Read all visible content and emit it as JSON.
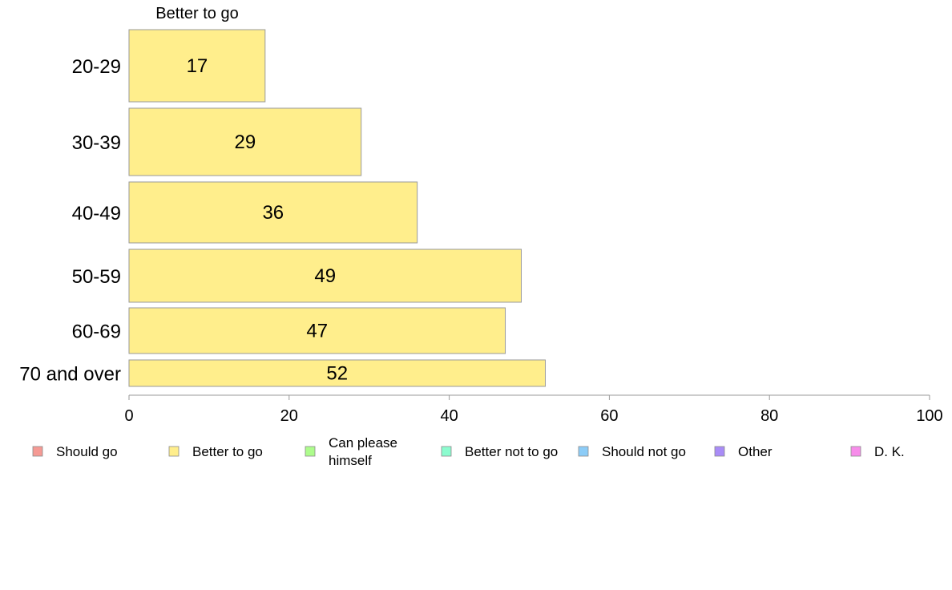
{
  "chart_data": {
    "type": "bar",
    "orientation": "horizontal",
    "series_title": "Better to go",
    "categories": [
      "20-29",
      "30-39",
      "40-49",
      "50-59",
      "60-69",
      "70 and over"
    ],
    "series": [
      {
        "name": "Better to go",
        "values": [
          17,
          29,
          36,
          49,
          47,
          52
        ],
        "color": "#FFEE8C"
      }
    ],
    "data_labels": [
      "17",
      "29",
      "36",
      "49",
      "47",
      "52"
    ],
    "xlim": [
      0,
      100
    ],
    "x_ticks": [
      0,
      20,
      40,
      60,
      80,
      100
    ],
    "x_tick_labels": [
      "0",
      "20",
      "40",
      "60",
      "80",
      "100"
    ],
    "xlabel": "",
    "ylabel": "",
    "grid": false,
    "legend_position": "bottom",
    "legend": [
      {
        "label": "Should go",
        "color": "#F59A94"
      },
      {
        "label": "Better to go",
        "color": "#FFEE8C"
      },
      {
        "label": "Can please himself",
        "color": "#ADFC8C"
      },
      {
        "label": "Better not to go",
        "color": "#8CFCCF"
      },
      {
        "label": "Should not go",
        "color": "#8CCCF7"
      },
      {
        "label": "Other",
        "color": "#A98CF7"
      },
      {
        "label": "D. K.",
        "color": "#F78CEA"
      }
    ]
  }
}
